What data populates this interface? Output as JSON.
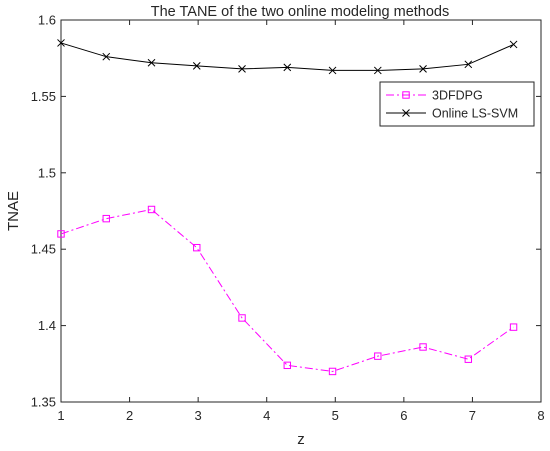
{
  "chart_data": {
    "type": "line",
    "title": "The TANE of the two online modeling methods",
    "xlabel": "z",
    "ylabel": "TNAE",
    "xlim": [
      1,
      8
    ],
    "ylim": [
      1.35,
      1.6
    ],
    "xticks": [
      1,
      2,
      3,
      4,
      5,
      6,
      7,
      8
    ],
    "yticks": [
      1.35,
      1.4,
      1.45,
      1.5,
      1.55,
      1.6
    ],
    "xtick_labels": [
      "1",
      "2",
      "3",
      "4",
      "5",
      "6",
      "7",
      "8"
    ],
    "ytick_labels": [
      "1.35",
      "1.4",
      "1.45",
      "1.5",
      "1.55",
      "1.6"
    ],
    "grid": false,
    "legend_position": "top-right",
    "series": [
      {
        "name": "3DFDPG",
        "color": "#ff00ff",
        "line_style": "dash-dot",
        "marker": "square",
        "x": [
          1.0,
          1.66,
          2.32,
          2.98,
          3.64,
          4.3,
          4.96,
          5.62,
          6.28,
          6.94,
          7.6
        ],
        "y": [
          1.46,
          1.47,
          1.476,
          1.451,
          1.405,
          1.374,
          1.37,
          1.38,
          1.386,
          1.378,
          1.399
        ]
      },
      {
        "name": "Online LS-SVM",
        "color": "#000000",
        "line_style": "solid",
        "marker": "x",
        "x": [
          1.0,
          1.66,
          2.32,
          2.98,
          3.64,
          4.3,
          4.96,
          5.62,
          6.28,
          6.94,
          7.6
        ],
        "y": [
          1.585,
          1.576,
          1.572,
          1.57,
          1.568,
          1.569,
          1.567,
          1.567,
          1.568,
          1.571,
          1.584
        ]
      }
    ]
  }
}
